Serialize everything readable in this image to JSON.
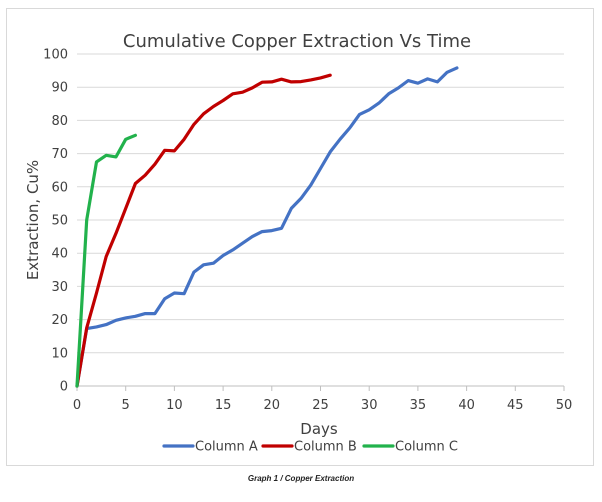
{
  "caption": "Graph 1 / Copper Extraction",
  "chart_data": {
    "type": "line",
    "title": "Cumulative Copper Extraction Vs Time",
    "xlabel": "Days",
    "ylabel": "Extraction, Cu%",
    "xlim": [
      0,
      50
    ],
    "ylim": [
      0,
      100
    ],
    "x_ticks": [
      0,
      5,
      10,
      15,
      20,
      25,
      30,
      35,
      40,
      45,
      50
    ],
    "y_ticks": [
      0,
      10,
      20,
      30,
      40,
      50,
      60,
      70,
      80,
      90,
      100
    ],
    "grid": "horizontal",
    "legend_position": "bottom",
    "series": [
      {
        "name": "Column A",
        "color": "#4472C4",
        "x": [
          0,
          1,
          2,
          3,
          4,
          5,
          6,
          7,
          8,
          9,
          10,
          11,
          12,
          13,
          14,
          15,
          16,
          17,
          18,
          19,
          20,
          21,
          22,
          23,
          24,
          25,
          26,
          27,
          28,
          29,
          30,
          31,
          32,
          33,
          34,
          35,
          36,
          37,
          38,
          39
        ],
        "y": [
          0,
          17.3,
          17.8,
          18.5,
          19.8,
          20.5,
          21,
          21.8,
          21.8,
          26.3,
          28,
          27.8,
          34.3,
          36.5,
          37,
          39.3,
          41,
          43,
          45,
          46.5,
          46.8,
          47.5,
          53.5,
          56.5,
          60.5,
          65.5,
          70.5,
          74.3,
          77.7,
          81.8,
          83.2,
          85.2,
          88,
          89.8,
          92,
          91.2,
          92.5,
          91.6,
          94.5,
          95.8
        ]
      },
      {
        "name": "Column B",
        "color": "#C00000",
        "x": [
          0,
          1,
          2,
          3,
          4,
          5,
          6,
          7,
          8,
          9,
          10,
          11,
          12,
          13,
          14,
          15,
          16,
          17,
          18,
          19,
          20,
          21,
          22,
          23,
          24,
          25,
          26
        ],
        "y": [
          0,
          17.5,
          28,
          39,
          46,
          53.5,
          61,
          63.5,
          66.8,
          71,
          70.8,
          74.3,
          78.8,
          82,
          84.2,
          86,
          88,
          88.5,
          89.8,
          91.5,
          91.6,
          92.4,
          91.6,
          91.7,
          92.2,
          92.8,
          93.6
        ]
      },
      {
        "name": "Column C",
        "color": "#22B24C",
        "x": [
          0,
          1,
          2,
          3,
          4,
          5,
          6
        ],
        "y": [
          0,
          50,
          67.5,
          69.5,
          69,
          74.3,
          75.5
        ]
      }
    ]
  }
}
